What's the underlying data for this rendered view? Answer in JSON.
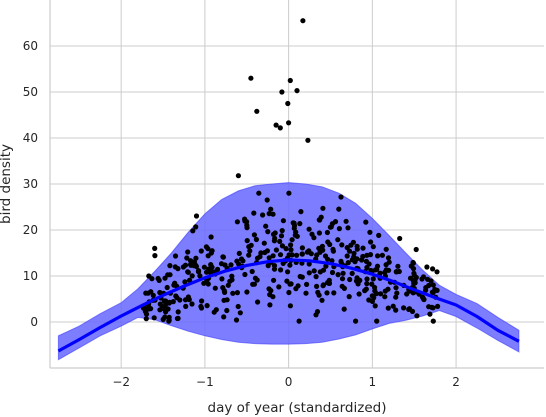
{
  "chart_data": {
    "type": "scatter",
    "title": "",
    "xlabel": "day of year (standardized)",
    "ylabel": "bird density",
    "xlim": [
      -2.85,
      3.05
    ],
    "ylim": [
      -10,
      70
    ],
    "x_ticks": [
      -2,
      -1,
      0,
      1,
      2
    ],
    "y_ticks": [
      0,
      10,
      20,
      30,
      40,
      50,
      60
    ],
    "grid": true,
    "legend": "none",
    "colors": {
      "points": "#000000",
      "mean_line": "#0000ff",
      "band": "#6666ff",
      "band_edge": "#3a3aff",
      "grid": "#cccccc",
      "spine": "#cccccc",
      "text": "#262626"
    },
    "observations": {
      "name": "",
      "n_points": 480,
      "x_range": [
        -1.75,
        1.8
      ],
      "notable_points": [
        {
          "x": 0.17,
          "y": 65.5
        },
        {
          "x": -0.45,
          "y": 53
        },
        {
          "x": 0.02,
          "y": 52.5
        },
        {
          "x": -0.08,
          "y": 50
        },
        {
          "x": 0.1,
          "y": 50.3
        },
        {
          "x": -0.38,
          "y": 45.8
        },
        {
          "x": -0.01,
          "y": 47.5
        },
        {
          "x": -0.15,
          "y": 42.8
        },
        {
          "x": -0.1,
          "y": 42.2
        },
        {
          "x": 0.0,
          "y": 43.3
        },
        {
          "x": 0.23,
          "y": 39.5
        },
        {
          "x": -0.6,
          "y": 31.8
        },
        {
          "x": -1.6,
          "y": 16
        }
      ]
    },
    "mean_curve": {
      "name": "",
      "x": [
        -2.75,
        -2.5,
        -2.25,
        -2.0,
        -1.75,
        -1.5,
        -1.25,
        -1.0,
        -0.75,
        -0.5,
        -0.25,
        0.0,
        0.25,
        0.5,
        0.75,
        1.0,
        1.25,
        1.5,
        1.75,
        2.0,
        2.25,
        2.5,
        2.75
      ],
      "y": [
        -6.3,
        -3.8,
        -1.2,
        1.3,
        3.6,
        5.8,
        7.8,
        9.6,
        11.1,
        12.3,
        13.1,
        13.5,
        13.3,
        12.7,
        11.7,
        10.4,
        8.8,
        7.0,
        5.3,
        3.7,
        1.2,
        -1.8,
        -4.2
      ]
    },
    "uncertainty_band": {
      "name": "",
      "x": [
        -2.75,
        -2.5,
        -2.25,
        -2.0,
        -1.8,
        -1.6,
        -1.4,
        -1.2,
        -1.0,
        -0.8,
        -0.6,
        -0.4,
        -0.2,
        0.0,
        0.2,
        0.4,
        0.6,
        0.8,
        1.0,
        1.2,
        1.4,
        1.6,
        1.8,
        2.0,
        2.25,
        2.5,
        2.75
      ],
      "lower": [
        -8.2,
        -5.6,
        -3.0,
        -0.9,
        1.0,
        0.5,
        -0.8,
        -2.0,
        -3.0,
        -3.8,
        -4.4,
        -4.7,
        -4.8,
        -4.8,
        -4.7,
        -4.4,
        -3.7,
        -2.8,
        -1.5,
        -0.3,
        0.4,
        1.3,
        2.5,
        1.2,
        -1.3,
        -4.0,
        -6.5
      ],
      "upper": [
        -3.0,
        -0.9,
        1.8,
        4.2,
        7.2,
        11.0,
        15.0,
        19.5,
        23.5,
        26.6,
        28.5,
        29.6,
        30.0,
        30.3,
        30.0,
        29.4,
        28.0,
        25.8,
        22.5,
        18.8,
        15.0,
        11.3,
        8.0,
        6.0,
        4.0,
        1.0,
        -1.8
      ]
    }
  }
}
